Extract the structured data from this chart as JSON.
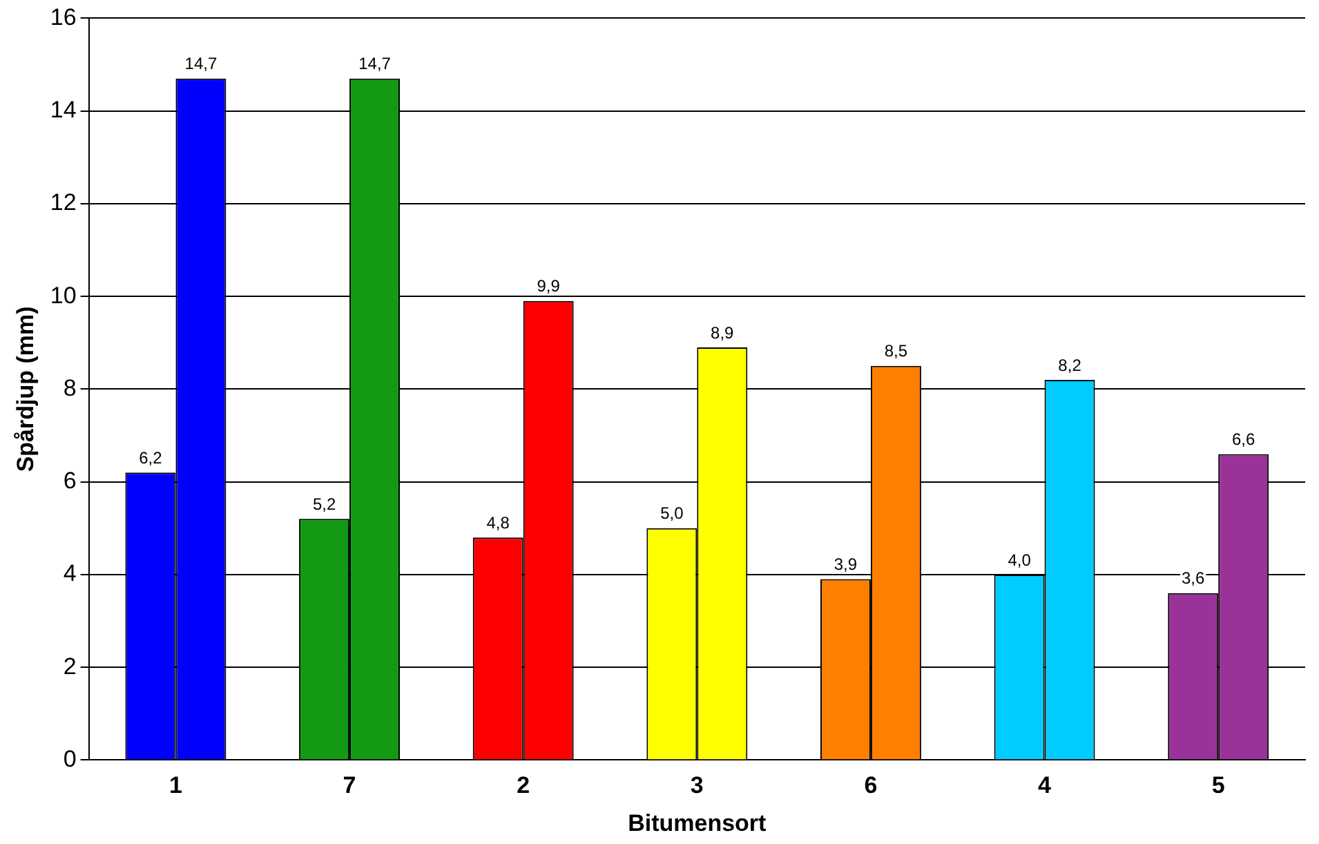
{
  "chart_data": {
    "type": "bar",
    "xlabel": "Bitumensort",
    "ylabel": "Spårdjup (mm)",
    "categories": [
      "1",
      "7",
      "2",
      "3",
      "6",
      "4",
      "5"
    ],
    "series": [
      {
        "colors": [
          "#0000ff",
          "#139a13",
          "#ff0000",
          "#ffff00",
          "#ff8000",
          "#00ccff",
          "#993399"
        ],
        "values": [
          6.2,
          5.2,
          4.8,
          5.0,
          3.9,
          4.0,
          3.6
        ],
        "value_labels": [
          "6,2",
          "5,2",
          "4,8",
          "5,0",
          "3,9",
          "4,0",
          "3,6"
        ]
      },
      {
        "colors": [
          "#0000ff",
          "#139a13",
          "#ff0000",
          "#ffff00",
          "#ff8000",
          "#00ccff",
          "#993399"
        ],
        "values": [
          14.7,
          14.7,
          9.9,
          8.9,
          8.5,
          8.2,
          6.6
        ],
        "value_labels": [
          "14,7",
          "14,7",
          "9,9",
          "8,9",
          "8,5",
          "8,2",
          "6,6"
        ]
      }
    ],
    "ylim": [
      0,
      16
    ],
    "yticks": [
      0,
      2,
      4,
      6,
      8,
      10,
      12,
      14,
      16
    ],
    "grid": "y",
    "legend": false
  }
}
